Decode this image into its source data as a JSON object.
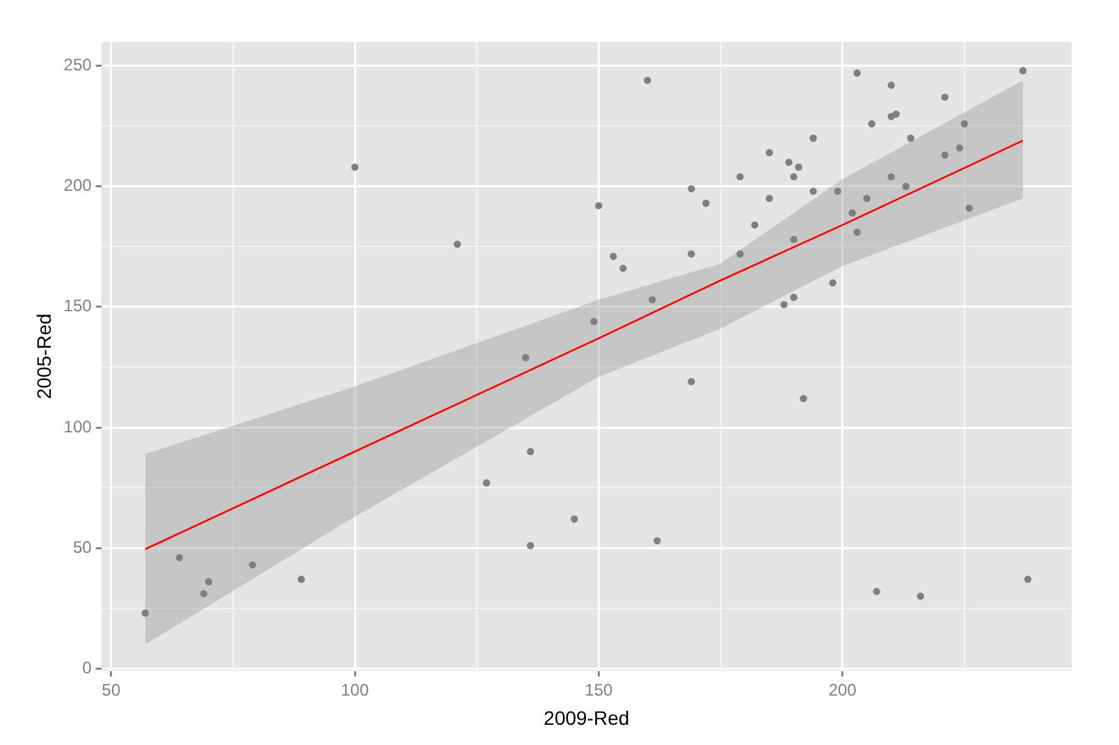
{
  "chart_data": {
    "type": "scatter",
    "xlabel": "2009-Red",
    "ylabel": "2005-Red",
    "xlim": [
      48,
      247
    ],
    "ylim": [
      -1,
      260
    ],
    "xticks": [
      50,
      {
        "value": 75,
        "label": null
      },
      100,
      {
        "value": 125,
        "label": null
      },
      150,
      {
        "value": 175,
        "label": null
      },
      200,
      {
        "value": 225,
        "label": null
      }
    ],
    "yticks": [
      0,
      {
        "value": 25,
        "label": null
      },
      50,
      {
        "value": 75,
        "label": null
      },
      100,
      {
        "value": 125,
        "label": null
      },
      150,
      {
        "value": 175,
        "label": null
      },
      200,
      {
        "value": 225,
        "label": null
      },
      250
    ],
    "grid": true,
    "legend": false,
    "marker": "circle",
    "series": [
      {
        "color": "#7f7f7f",
        "x": [
          57,
          64,
          69,
          70,
          79,
          89,
          100,
          121,
          127,
          135,
          136,
          136,
          145,
          149,
          150,
          153,
          155,
          160,
          161,
          162,
          169,
          169,
          169,
          172,
          179,
          179,
          182,
          185,
          185,
          188,
          189,
          190,
          190,
          190,
          191,
          192,
          194,
          194,
          198,
          199,
          202,
          203,
          203,
          205,
          206,
          207,
          210,
          210,
          210,
          211,
          213,
          214,
          216,
          221,
          221,
          224,
          225,
          226,
          237,
          238
        ],
        "values": [
          23,
          46,
          31,
          36,
          43,
          37,
          208,
          176,
          77,
          129,
          90,
          51,
          62,
          144,
          192,
          171,
          166,
          244,
          153,
          53,
          199,
          172,
          119,
          193,
          204,
          172,
          184,
          214,
          195,
          151,
          210,
          178,
          204,
          154,
          208,
          112,
          220,
          198,
          160,
          198,
          189,
          247,
          181,
          195,
          226,
          32,
          242,
          204,
          229,
          230,
          200,
          220,
          30,
          237,
          213,
          216,
          226,
          191,
          248,
          37
        ]
      },
      {
        "type": "line",
        "color": "#ff0000",
        "marker": "none",
        "x": [
          57,
          100,
          150,
          175,
          200,
          237
        ],
        "values": [
          49.5,
          90,
          137,
          161,
          184,
          219
        ],
        "lower": [
          10,
          63,
          121,
          141,
          167,
          195
        ],
        "upper": [
          89,
          117,
          153,
          168,
          203,
          244
        ]
      }
    ]
  }
}
